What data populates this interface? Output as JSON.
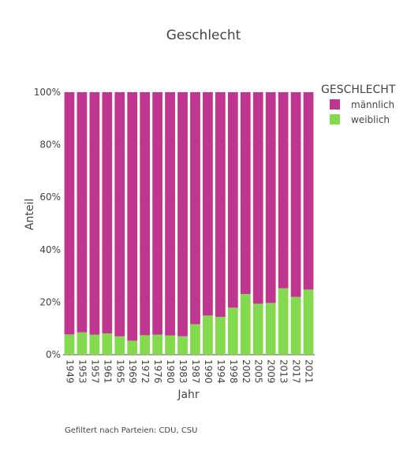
{
  "footnote": "Gefiltert nach Parteien: CDU, CSU",
  "chart_data": {
    "type": "bar",
    "stacked": true,
    "normalized": true,
    "title": "Geschlecht",
    "xlabel": "Jahr",
    "ylabel": "Anteil",
    "ylim": [
      0,
      100
    ],
    "y_ticks": [
      "0%",
      "20%",
      "40%",
      "60%",
      "80%",
      "100%"
    ],
    "y_tick_values": [
      0,
      20,
      40,
      60,
      80,
      100
    ],
    "grid": true,
    "legend": {
      "title": "GESCHLECHT",
      "placement": "top-right"
    },
    "categories": [
      "1949",
      "1953",
      "1957",
      "1961",
      "1965",
      "1969",
      "1972",
      "1976",
      "1980",
      "1983",
      "1987",
      "1990",
      "1994",
      "1998",
      "2002",
      "2005",
      "2009",
      "2013",
      "2017",
      "2021"
    ],
    "series": [
      {
        "name": "weiblich",
        "color": "#85d94f",
        "values": [
          7.7,
          8.5,
          7.6,
          8.1,
          7.0,
          5.3,
          7.4,
          7.6,
          7.3,
          7.0,
          11.6,
          14.9,
          14.4,
          17.9,
          23.1,
          19.4,
          19.7,
          25.3,
          22.0,
          24.8
        ]
      },
      {
        "name": "männlich",
        "color": "#c0358f",
        "values": [
          92.3,
          91.5,
          92.4,
          91.9,
          93.0,
          94.7,
          92.6,
          92.4,
          92.7,
          93.0,
          88.4,
          85.1,
          85.6,
          82.1,
          76.9,
          80.6,
          80.3,
          74.7,
          78.0,
          75.2
        ]
      }
    ],
    "legend_order": [
      "männlich",
      "weiblich"
    ]
  }
}
